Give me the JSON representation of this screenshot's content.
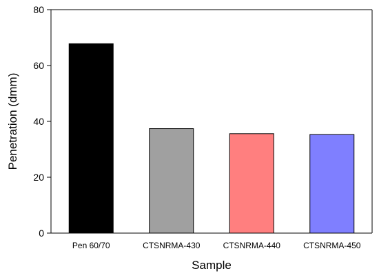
{
  "chart_data": {
    "type": "bar",
    "title": "",
    "xlabel": "Sample",
    "ylabel": "Penetration (dmm)",
    "ylim": [
      0,
      80
    ],
    "yticks": [
      0,
      20,
      40,
      60,
      80
    ],
    "grid": false,
    "categories": [
      "Pen 60/70",
      "CTSNRMA-430",
      "CTSNRMA-440",
      "CTSNRMA-450"
    ],
    "values": [
      67.8,
      37.4,
      35.6,
      35.3
    ],
    "colors": [
      "#000000",
      "#a0a0a0",
      "#ff7f7f",
      "#7f7fff"
    ],
    "bar_edge_color": "#000000"
  }
}
